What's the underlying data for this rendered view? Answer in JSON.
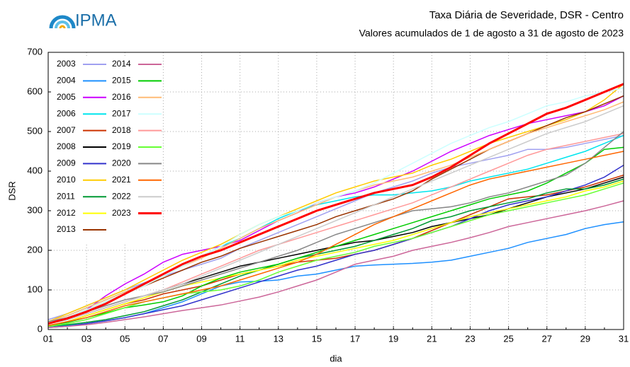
{
  "logo": "IPMA",
  "chart_data": {
    "type": "line",
    "title": "Taxa Diária de Severidade, DSR - Centro",
    "subtitle": "Valores acumulados de  1 de agosto a 31 de agosto de 2023",
    "ylabel": "DSR",
    "xlabel": "dia",
    "categories": [
      "01",
      null,
      "03",
      null,
      "05",
      null,
      "07",
      null,
      "09",
      null,
      "11",
      null,
      "13",
      null,
      "15",
      null,
      "17",
      null,
      "19",
      null,
      "21",
      null,
      "23",
      null,
      "25",
      null,
      "27",
      null,
      "29",
      null,
      "31"
    ],
    "ylim": [
      0,
      700
    ],
    "yticks": [
      0,
      100,
      200,
      300,
      400,
      500,
      600,
      700
    ],
    "grid": true,
    "legend": "top-left",
    "series": [
      {
        "name": "2003",
        "color": "#a0a0f0",
        "values": [
          25,
          40,
          60,
          80,
          100,
          118,
          135,
          150,
          165,
          180,
          205,
          225,
          245,
          265,
          285,
          305,
          325,
          345,
          360,
          375,
          395,
          410,
          420,
          430,
          440,
          455,
          455,
          460,
          470,
          480,
          490
        ]
      },
      {
        "name": "2004",
        "color": "#1e90ff",
        "values": [
          5,
          10,
          15,
          22,
          30,
          40,
          55,
          70,
          90,
          110,
          120,
          122,
          125,
          135,
          140,
          150,
          160,
          163,
          165,
          167,
          170,
          175,
          185,
          195,
          205,
          220,
          230,
          240,
          255,
          265,
          272
        ]
      },
      {
        "name": "2005",
        "color": "#cc00ff",
        "values": [
          15,
          30,
          50,
          85,
          115,
          140,
          170,
          190,
          200,
          210,
          225,
          250,
          275,
          295,
          320,
          335,
          345,
          360,
          380,
          400,
          425,
          450,
          470,
          490,
          505,
          520,
          530,
          540,
          550,
          565,
          590
        ]
      },
      {
        "name": "2006",
        "color": "#00e5ee",
        "values": [
          20,
          35,
          55,
          75,
          95,
          115,
          140,
          165,
          185,
          210,
          230,
          255,
          280,
          300,
          315,
          325,
          335,
          340,
          340,
          345,
          350,
          360,
          375,
          385,
          395,
          405,
          420,
          435,
          450,
          470,
          490
        ]
      },
      {
        "name": "2007",
        "color": "#cc3300",
        "values": [
          10,
          20,
          35,
          50,
          65,
          75,
          90,
          100,
          110,
          125,
          140,
          150,
          160,
          170,
          175,
          180,
          190,
          200,
          215,
          230,
          250,
          270,
          290,
          310,
          330,
          335,
          340,
          350,
          360,
          375,
          390
        ]
      },
      {
        "name": "2008",
        "color": "#000000",
        "values": [
          15,
          25,
          40,
          55,
          70,
          85,
          100,
          115,
          130,
          145,
          160,
          170,
          180,
          190,
          200,
          210,
          220,
          225,
          235,
          245,
          260,
          270,
          280,
          290,
          305,
          320,
          335,
          345,
          355,
          370,
          385
        ]
      },
      {
        "name": "2009",
        "color": "#3333cc",
        "values": [
          5,
          8,
          15,
          22,
          30,
          40,
          50,
          60,
          75,
          90,
          105,
          120,
          135,
          150,
          160,
          175,
          190,
          200,
          215,
          230,
          245,
          260,
          280,
          300,
          315,
          325,
          335,
          350,
          365,
          385,
          415
        ]
      },
      {
        "name": "2010",
        "color": "#ffcc00",
        "values": [
          20,
          40,
          60,
          80,
          100,
          125,
          150,
          175,
          195,
          215,
          240,
          265,
          285,
          305,
          325,
          345,
          360,
          375,
          385,
          395,
          415,
          430,
          450,
          470,
          485,
          500,
          515,
          530,
          550,
          580,
          620
        ]
      },
      {
        "name": "2011",
        "color": "#009933",
        "values": [
          8,
          12,
          18,
          25,
          35,
          45,
          60,
          75,
          95,
          115,
          135,
          150,
          165,
          180,
          190,
          200,
          210,
          225,
          240,
          255,
          275,
          285,
          300,
          310,
          320,
          330,
          345,
          355,
          355,
          365,
          380
        ]
      },
      {
        "name": "2012",
        "color": "#ffff00",
        "values": [
          10,
          20,
          35,
          50,
          65,
          80,
          95,
          110,
          120,
          130,
          140,
          150,
          160,
          175,
          185,
          195,
          205,
          215,
          225,
          240,
          255,
          270,
          285,
          295,
          305,
          315,
          325,
          335,
          350,
          360,
          375
        ]
      },
      {
        "name": "2013",
        "color": "#993300",
        "values": [
          15,
          30,
          50,
          70,
          90,
          110,
          130,
          150,
          170,
          185,
          205,
          220,
          235,
          250,
          265,
          285,
          300,
          315,
          330,
          350,
          380,
          405,
          430,
          455,
          475,
          495,
          515,
          535,
          550,
          570,
          590
        ]
      },
      {
        "name": "2014",
        "color": "#cc6699",
        "values": [
          5,
          8,
          12,
          18,
          25,
          32,
          40,
          48,
          55,
          62,
          72,
          82,
          95,
          110,
          125,
          145,
          165,
          175,
          185,
          200,
          210,
          220,
          232,
          245,
          260,
          270,
          280,
          290,
          300,
          312,
          325
        ]
      },
      {
        "name": "2015",
        "color": "#00cc00",
        "values": [
          10,
          18,
          30,
          42,
          55,
          62,
          70,
          85,
          110,
          130,
          145,
          155,
          165,
          180,
          195,
          210,
          225,
          240,
          255,
          270,
          285,
          300,
          315,
          330,
          340,
          350,
          370,
          395,
          420,
          455,
          460
        ]
      },
      {
        "name": "2016",
        "color": "#ffbb77",
        "values": [
          20,
          35,
          55,
          75,
          95,
          115,
          135,
          160,
          180,
          205,
          230,
          255,
          275,
          295,
          315,
          335,
          350,
          365,
          375,
          385,
          400,
          415,
          435,
          455,
          475,
          495,
          510,
          525,
          540,
          555,
          575
        ]
      },
      {
        "name": "2017",
        "color": "#ccffff",
        "values": [
          15,
          30,
          50,
          70,
          90,
          110,
          135,
          160,
          185,
          210,
          240,
          265,
          285,
          300,
          320,
          335,
          350,
          370,
          395,
          420,
          445,
          470,
          490,
          510,
          525,
          545,
          565,
          575,
          590,
          600,
          610
        ]
      },
      {
        "name": "2018",
        "color": "#ff9999",
        "values": [
          15,
          25,
          40,
          55,
          70,
          85,
          100,
          120,
          140,
          160,
          180,
          200,
          215,
          230,
          245,
          260,
          275,
          290,
          305,
          320,
          340,
          360,
          380,
          400,
          420,
          440,
          455,
          465,
          475,
          485,
          495
        ]
      },
      {
        "name": "2019",
        "color": "#66ff33",
        "values": [
          8,
          15,
          25,
          40,
          55,
          70,
          80,
          90,
          95,
          100,
          110,
          125,
          145,
          160,
          175,
          185,
          195,
          210,
          220,
          230,
          245,
          260,
          275,
          290,
          300,
          310,
          320,
          330,
          340,
          355,
          370
        ]
      },
      {
        "name": "2020",
        "color": "#888888",
        "values": [
          20,
          30,
          45,
          60,
          75,
          85,
          95,
          110,
          125,
          140,
          155,
          170,
          185,
          200,
          220,
          240,
          255,
          270,
          285,
          300,
          305,
          310,
          320,
          335,
          345,
          360,
          375,
          390,
          420,
          460,
          500
        ]
      },
      {
        "name": "2021",
        "color": "#ff6600",
        "values": [
          10,
          20,
          30,
          45,
          60,
          70,
          80,
          90,
          100,
          110,
          125,
          140,
          155,
          170,
          190,
          215,
          240,
          265,
          285,
          305,
          325,
          345,
          365,
          380,
          390,
          400,
          410,
          420,
          430,
          440,
          450
        ]
      },
      {
        "name": "2022",
        "color": "#cccccc",
        "values": [
          15,
          25,
          40,
          55,
          70,
          85,
          100,
          115,
          135,
          155,
          175,
          195,
          215,
          235,
          255,
          275,
          295,
          315,
          335,
          355,
          375,
          395,
          415,
          435,
          455,
          475,
          495,
          510,
          525,
          545,
          565
        ]
      },
      {
        "name": "2023",
        "color": "#ff0000",
        "values": [
          15,
          28,
          45,
          65,
          90,
          115,
          140,
          165,
          185,
          200,
          220,
          240,
          260,
          280,
          300,
          315,
          330,
          345,
          355,
          365,
          385,
          410,
          440,
          470,
          495,
          520,
          545,
          560,
          580,
          600,
          620
        ]
      }
    ]
  }
}
